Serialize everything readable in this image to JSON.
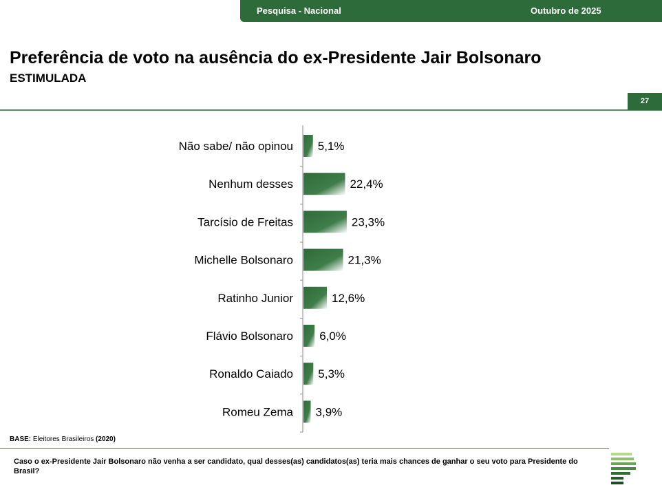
{
  "header": {
    "survey": "Pesquisa - Nacional",
    "date": "Outubro de 2025",
    "page": "27"
  },
  "title": "Preferência de voto na ausência do ex-Presidente Jair Bolsonaro",
  "subtitle": "ESTIMULADA",
  "base": {
    "label": "BASE:",
    "text": " Eleitores Brasileiros ",
    "n": "(2020)"
  },
  "question": "Caso o ex-Presidente Jair Bolsonaro não venha a ser candidato, qual desses(as) candidatos(as) teria mais chances de ganhar o seu voto para Presidente do Brasil?",
  "colors": {
    "brand_green": "#2e6b3a",
    "bar_green": "#3f7d4a"
  },
  "chart_data": {
    "type": "bar",
    "orientation": "horizontal",
    "categories": [
      "Não sabe/ não opinou",
      "Nenhum desses",
      "Tarcísio de Freitas",
      "Michelle Bolsonaro",
      "Ratinho Junior",
      "Flávio Bolsonaro",
      "Ronaldo Caiado",
      "Romeu Zema"
    ],
    "values": [
      5.1,
      22.4,
      23.3,
      21.3,
      12.6,
      6.0,
      5.3,
      3.9
    ],
    "labels": [
      "5,1%",
      "22,4%",
      "23,3%",
      "21,3%",
      "12,6%",
      "6,0%",
      "5,3%",
      "3,9%"
    ],
    "unit": "%",
    "grid": false,
    "legend": "none"
  }
}
